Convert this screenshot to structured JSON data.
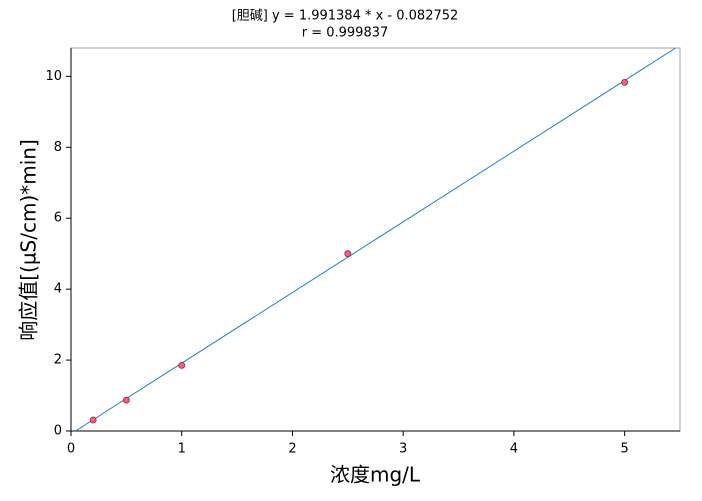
{
  "chart_data": {
    "type": "scatter",
    "title": "[胆碱] y = 1.991384 * x - 0.082752",
    "subtitle": "r = 0.999837",
    "x_label": "浓度mg/L",
    "y_label": "响应值[(µS/cm)*min]",
    "x": [
      0.2,
      0.5,
      1,
      2.5,
      5
    ],
    "values": [
      0.31,
      0.87,
      1.85,
      5.0,
      9.83
    ],
    "color": "#ff5c7a",
    "fit_line": {
      "x": [
        0.04,
        5.46
      ],
      "values": [
        0,
        10.8
      ],
      "color": "#1a7fd0"
    },
    "xlim": [
      0,
      5.5
    ],
    "ylim": [
      0,
      10.8
    ],
    "xticks": [
      0,
      1,
      2,
      3,
      4,
      5
    ],
    "yticks": [
      0,
      2,
      4,
      6,
      8,
      10
    ],
    "grid": false
  }
}
